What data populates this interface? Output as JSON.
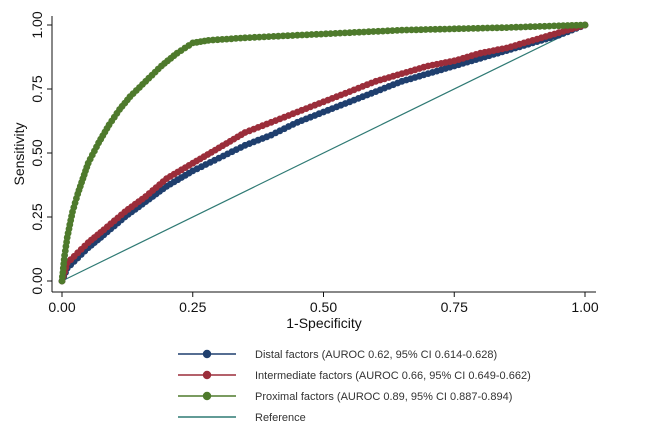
{
  "chart_data": {
    "type": "line",
    "title": "",
    "xlabel": "1-Specificity",
    "ylabel": "Sensitivity",
    "xlim": [
      0,
      1
    ],
    "ylim": [
      0,
      1
    ],
    "x_ticks": [
      "0.00",
      "0.25",
      "0.50",
      "0.75",
      "1.00"
    ],
    "y_ticks": [
      "0.00",
      "0.25",
      "0.50",
      "0.75",
      "1.00"
    ],
    "grid": false,
    "legend_placement": "bottom",
    "series": [
      {
        "name": "Distal factors (AUROC 0.62, 95% CI 0.614-0.628)",
        "color": "#1f3f6e",
        "marker": "circle",
        "points": [
          [
            0,
            0
          ],
          [
            0.01,
            0.05
          ],
          [
            0.03,
            0.09
          ],
          [
            0.05,
            0.13
          ],
          [
            0.08,
            0.18
          ],
          [
            0.12,
            0.25
          ],
          [
            0.16,
            0.31
          ],
          [
            0.2,
            0.37
          ],
          [
            0.25,
            0.43
          ],
          [
            0.3,
            0.48
          ],
          [
            0.35,
            0.53
          ],
          [
            0.4,
            0.57
          ],
          [
            0.45,
            0.62
          ],
          [
            0.5,
            0.66
          ],
          [
            0.55,
            0.7
          ],
          [
            0.6,
            0.74
          ],
          [
            0.65,
            0.78
          ],
          [
            0.7,
            0.81
          ],
          [
            0.75,
            0.84
          ],
          [
            0.8,
            0.87
          ],
          [
            0.85,
            0.9
          ],
          [
            0.9,
            0.93
          ],
          [
            0.95,
            0.96
          ],
          [
            1.0,
            1.0
          ]
        ]
      },
      {
        "name": "Intermediate factors (AUROC 0.66, 95% CI 0.649-0.662)",
        "color": "#9b2d3a",
        "marker": "circle",
        "points": [
          [
            0,
            0
          ],
          [
            0.01,
            0.07
          ],
          [
            0.03,
            0.11
          ],
          [
            0.05,
            0.15
          ],
          [
            0.08,
            0.2
          ],
          [
            0.12,
            0.27
          ],
          [
            0.16,
            0.33
          ],
          [
            0.2,
            0.4
          ],
          [
            0.25,
            0.46
          ],
          [
            0.3,
            0.52
          ],
          [
            0.35,
            0.58
          ],
          [
            0.4,
            0.62
          ],
          [
            0.45,
            0.66
          ],
          [
            0.5,
            0.7
          ],
          [
            0.55,
            0.74
          ],
          [
            0.6,
            0.78
          ],
          [
            0.65,
            0.81
          ],
          [
            0.7,
            0.84
          ],
          [
            0.75,
            0.86
          ],
          [
            0.8,
            0.89
          ],
          [
            0.85,
            0.91
          ],
          [
            0.9,
            0.94
          ],
          [
            0.95,
            0.97
          ],
          [
            1.0,
            1.0
          ]
        ]
      },
      {
        "name": "Proximal factors (AUROC 0.89, 95% CI 0.887-0.894)",
        "color": "#4e7a2c",
        "marker": "circle",
        "points": [
          [
            0,
            0
          ],
          [
            0.005,
            0.1
          ],
          [
            0.01,
            0.17
          ],
          [
            0.02,
            0.27
          ],
          [
            0.03,
            0.34
          ],
          [
            0.04,
            0.4
          ],
          [
            0.05,
            0.46
          ],
          [
            0.07,
            0.54
          ],
          [
            0.09,
            0.61
          ],
          [
            0.11,
            0.67
          ],
          [
            0.13,
            0.72
          ],
          [
            0.16,
            0.78
          ],
          [
            0.19,
            0.84
          ],
          [
            0.22,
            0.89
          ],
          [
            0.25,
            0.93
          ],
          [
            0.28,
            0.94
          ],
          [
            0.35,
            0.95
          ],
          [
            0.45,
            0.96
          ],
          [
            0.55,
            0.97
          ],
          [
            0.65,
            0.98
          ],
          [
            0.75,
            0.985
          ],
          [
            0.85,
            0.99
          ],
          [
            0.95,
            0.997
          ],
          [
            1.0,
            1.0
          ]
        ]
      },
      {
        "name": "Reference",
        "color": "#2f7a74",
        "marker": "none",
        "points": [
          [
            0,
            0
          ],
          [
            1,
            1
          ]
        ]
      }
    ]
  }
}
